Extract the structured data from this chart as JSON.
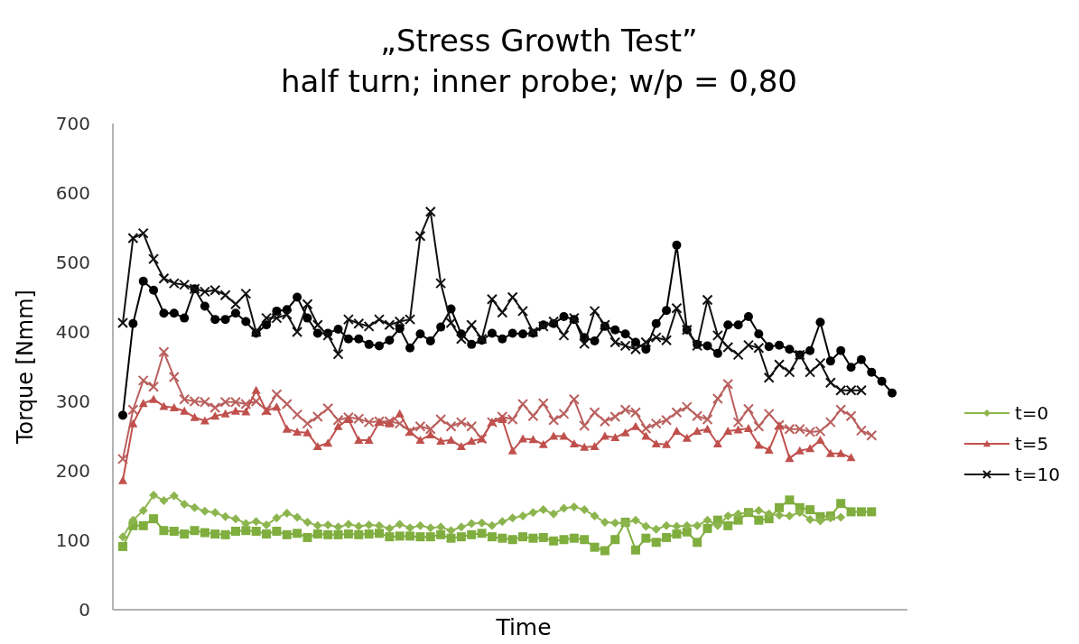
{
  "chart_data": {
    "type": "line",
    "title": "„Stress Growth Test”",
    "subtitle": "half turn; inner probe; w/p = 0,80",
    "xlabel": "Time",
    "ylabel": "Torque [Nmm]",
    "categories": [
      null,
      null,
      null,
      null,
      null,
      null,
      null,
      null,
      null,
      null,
      null,
      null,
      null,
      null,
      null,
      null,
      null,
      null,
      null,
      null,
      null,
      null,
      null,
      null,
      null,
      null,
      null,
      null,
      null,
      null,
      null,
      null,
      null,
      null,
      null,
      null,
      null,
      null,
      null,
      null,
      null,
      null,
      null,
      null,
      null,
      null,
      null,
      null,
      null,
      null,
      null,
      null,
      null,
      null,
      null,
      null,
      null,
      null,
      null,
      null,
      null,
      null,
      null,
      null,
      null,
      null,
      null,
      null,
      null,
      null,
      null,
      null,
      null,
      null,
      null,
      null
    ],
    "ylim": [
      0,
      700
    ],
    "yticks": [
      0,
      100,
      200,
      300,
      400,
      500,
      600,
      700
    ],
    "grid": false,
    "legend": "right",
    "series": [
      {
        "color": "#7fae3e",
        "marker": "square",
        "values": [
          91,
          121,
          121,
          131,
          114,
          113,
          109,
          114,
          111,
          109,
          108,
          113,
          114,
          113,
          109,
          113,
          108,
          110,
          104,
          109,
          108,
          108,
          109,
          108,
          109,
          110,
          105,
          106,
          106,
          105,
          105,
          108,
          103,
          105,
          108,
          110,
          105,
          103,
          101,
          105,
          103,
          104,
          99,
          101,
          103,
          101,
          90,
          85,
          101,
          126,
          86,
          103,
          97,
          104,
          109,
          112,
          97,
          117,
          129,
          121,
          129,
          140,
          129,
          131,
          147,
          158,
          147,
          144,
          134,
          135,
          153,
          141,
          141,
          141,
          null,
          null
        ]
      },
      {
        "name": "t=0",
        "color": "#8db54f",
        "marker": "diamond",
        "values": [
          105,
          129,
          143,
          165,
          157,
          164,
          152,
          147,
          142,
          140,
          134,
          131,
          124,
          127,
          122,
          132,
          139,
          133,
          126,
          121,
          122,
          119,
          123,
          120,
          122,
          121,
          117,
          123,
          118,
          121,
          118,
          119,
          114,
          119,
          124,
          125,
          121,
          127,
          132,
          135,
          140,
          144,
          138,
          146,
          148,
          144,
          135,
          126,
          125,
          125,
          129,
          120,
          116,
          121,
          120,
          121,
          121,
          129,
          121,
          135,
          138,
          140,
          143,
          138,
          136,
          135,
          140,
          130,
          128,
          132,
          133,
          null,
          null,
          null,
          null,
          null
        ]
      },
      {
        "color": "#b9605e",
        "marker": "cross",
        "values": [
          217,
          288,
          330,
          321,
          371,
          335,
          303,
          300,
          299,
          291,
          299,
          299,
          296,
          300,
          287,
          310,
          296,
          281,
          268,
          278,
          290,
          273,
          277,
          275,
          270,
          271,
          271,
          268,
          257,
          264,
          260,
          274,
          264,
          270,
          264,
          246,
          270,
          278,
          274,
          296,
          279,
          297,
          273,
          282,
          303,
          265,
          284,
          271,
          278,
          288,
          284,
          261,
          268,
          273,
          284,
          292,
          279,
          274,
          304,
          325,
          270,
          289,
          264,
          282,
          266,
          260,
          260,
          256,
          257,
          270,
          288,
          279,
          258,
          251,
          null,
          null
        ]
      },
      {
        "name": "t=5",
        "color": "#c0504d",
        "marker": "triangle",
        "values": [
          186,
          268,
          297,
          303,
          293,
          291,
          286,
          277,
          272,
          279,
          282,
          286,
          285,
          316,
          286,
          292,
          260,
          256,
          255,
          235,
          240,
          264,
          274,
          244,
          244,
          270,
          268,
          282,
          256,
          244,
          252,
          243,
          244,
          235,
          243,
          246,
          270,
          274,
          229,
          246,
          245,
          238,
          250,
          250,
          239,
          234,
          235,
          250,
          248,
          255,
          264,
          250,
          239,
          238,
          257,
          247,
          257,
          260,
          239,
          257,
          259,
          261,
          237,
          230,
          265,
          218,
          229,
          232,
          244,
          225,
          225,
          219,
          null,
          null,
          null,
          null
        ]
      },
      {
        "color": "#000000",
        "marker": "circle",
        "values": [
          280,
          412,
          473,
          460,
          427,
          427,
          420,
          462,
          437,
          418,
          418,
          427,
          415,
          398,
          410,
          430,
          432,
          450,
          420,
          398,
          398,
          404,
          390,
          390,
          382,
          380,
          388,
          405,
          377,
          397,
          387,
          407,
          433,
          397,
          382,
          388,
          398,
          390,
          398,
          397,
          398,
          410,
          412,
          422,
          418,
          392,
          387,
          408,
          403,
          397,
          385,
          375,
          412,
          431,
          525,
          403,
          382,
          380,
          369,
          410,
          410,
          422,
          397,
          379,
          381,
          375,
          367,
          373,
          414,
          358,
          373,
          349,
          360,
          342,
          329,
          312
        ]
      },
      {
        "name": "t=10",
        "color": "#111111",
        "marker": "cross",
        "values": [
          413,
          535,
          542,
          505,
          477,
          470,
          468,
          462,
          458,
          460,
          453,
          440,
          455,
          400,
          420,
          420,
          425,
          400,
          440,
          410,
          395,
          368,
          418,
          412,
          408,
          418,
          410,
          415,
          418,
          538,
          573,
          470,
          413,
          390,
          410,
          390,
          447,
          428,
          450,
          430,
          400,
          408,
          415,
          395,
          420,
          383,
          430,
          410,
          385,
          380,
          375,
          385,
          392,
          388,
          434,
          403,
          380,
          446,
          395,
          378,
          367,
          381,
          377,
          334,
          353,
          342,
          367,
          342,
          355,
          327,
          316,
          316,
          316,
          null,
          null,
          null
        ]
      }
    ]
  }
}
